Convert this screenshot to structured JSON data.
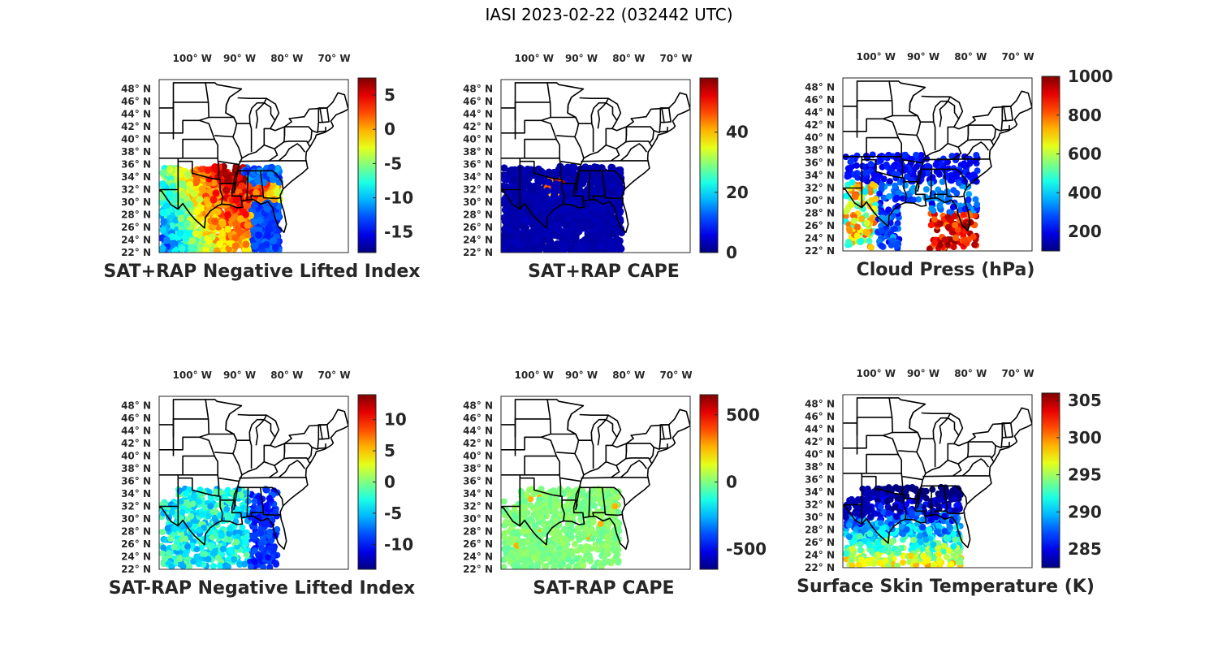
{
  "figure_title": "IASI 2023-02-22 (032442 UTC)",
  "chart_data": [
    {
      "type": "heatmap",
      "title": "SAT+RAP Negative Lifted Index",
      "lon_ticks": [
        "100° W",
        "90° W",
        "80° W",
        "70° W"
      ],
      "lat_ticks": [
        "48° N",
        "46° N",
        "44° N",
        "42° N",
        "40° N",
        "38° N",
        "36° N",
        "34° N",
        "32° N",
        "30° N",
        "28° N",
        "26° N",
        "24° N",
        "22° N"
      ],
      "colorbar": {
        "min": -18,
        "max": 7.5,
        "ticks": [
          5,
          0,
          -5,
          -10,
          -15
        ],
        "labels": [
          "5",
          "0",
          "-5",
          "-10",
          "-15"
        ]
      }
    },
    {
      "type": "heatmap",
      "title": "SAT+RAP CAPE",
      "lon_ticks": [
        "100° W",
        "90° W",
        "80° W",
        "70° W"
      ],
      "lat_ticks": [
        "48° N",
        "46° N",
        "44° N",
        "42° N",
        "40° N",
        "38° N",
        "36° N",
        "34° N",
        "32° N",
        "30° N",
        "28° N",
        "26° N",
        "24° N",
        "22° N"
      ],
      "colorbar": {
        "min": 0,
        "max": 58,
        "ticks": [
          40,
          20,
          0
        ],
        "labels": [
          "40",
          "20",
          "0"
        ]
      }
    },
    {
      "type": "heatmap",
      "title": "Cloud Press (hPa)",
      "lon_ticks": [
        "100° W",
        "90° W",
        "80° W",
        "70° W"
      ],
      "lat_ticks": [
        "48° N",
        "46° N",
        "44° N",
        "42° N",
        "40° N",
        "38° N",
        "36° N",
        "34° N",
        "32° N",
        "30° N",
        "28° N",
        "26° N",
        "24° N",
        "22° N"
      ],
      "colorbar": {
        "min": 100,
        "max": 1000,
        "ticks": [
          1000,
          800,
          600,
          400,
          200
        ],
        "labels": [
          "1000",
          "800",
          "600",
          "400",
          "200"
        ]
      }
    },
    {
      "type": "heatmap",
      "title": "SAT-RAP Negative Lifted Index",
      "lon_ticks": [
        "100° W",
        "90° W",
        "80° W",
        "70° W"
      ],
      "lat_ticks": [
        "48° N",
        "46° N",
        "44° N",
        "42° N",
        "40° N",
        "38° N",
        "36° N",
        "34° N",
        "32° N",
        "30° N",
        "28° N",
        "26° N",
        "24° N",
        "22° N"
      ],
      "colorbar": {
        "min": -14,
        "max": 14,
        "ticks": [
          10,
          5,
          0,
          -5,
          -10
        ],
        "labels": [
          "10",
          "5",
          "0",
          "-5",
          "-10"
        ]
      }
    },
    {
      "type": "heatmap",
      "title": "SAT-RAP CAPE",
      "lon_ticks": [
        "100° W",
        "90° W",
        "80° W",
        "70° W"
      ],
      "lat_ticks": [
        "48° N",
        "46° N",
        "44° N",
        "42° N",
        "40° N",
        "38° N",
        "36° N",
        "34° N",
        "32° N",
        "30° N",
        "28° N",
        "26° N",
        "24° N",
        "22° N"
      ],
      "colorbar": {
        "min": -650,
        "max": 650,
        "ticks": [
          500,
          0,
          -500
        ],
        "labels": [
          "500",
          "0",
          "-500"
        ]
      }
    },
    {
      "type": "heatmap",
      "title": "Surface Skin Temperature (K)",
      "lon_ticks": [
        "100° W",
        "90° W",
        "80° W",
        "70° W"
      ],
      "lat_ticks": [
        "48° N",
        "46° N",
        "44° N",
        "42° N",
        "40° N",
        "38° N",
        "36° N",
        "34° N",
        "32° N",
        "30° N",
        "28° N",
        "26° N",
        "24° N",
        "22° N"
      ],
      "colorbar": {
        "min": 282.5,
        "max": 306,
        "ticks": [
          305,
          300,
          295,
          290,
          285
        ],
        "labels": [
          "305",
          "300",
          "295",
          "290",
          "285"
        ]
      }
    }
  ]
}
